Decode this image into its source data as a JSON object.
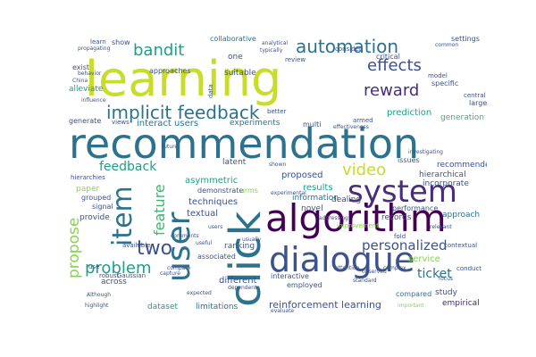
{
  "palette": {
    "yellow": "#c8dc2a",
    "green": "#3fb56e",
    "teal": "#1f9e89",
    "blue": "#2c728e",
    "indigo": "#3b528b",
    "purple": "#440154",
    "violet": "#472d7b",
    "lime": "#86d549"
  },
  "words": [
    {
      "text": "learning",
      "color": "yellow"
    },
    {
      "text": "recommendation",
      "color": "blue"
    },
    {
      "text": "system",
      "color": "violet"
    },
    {
      "text": "algorithm",
      "color": "purple"
    },
    {
      "text": "click",
      "color": "blue"
    },
    {
      "text": "dialogue",
      "color": "indigo"
    },
    {
      "text": "user",
      "color": "blue"
    },
    {
      "text": "item",
      "color": "blue"
    },
    {
      "text": "implicit feedback",
      "color": "blue"
    },
    {
      "text": "automation",
      "color": "blue"
    },
    {
      "text": "effects",
      "color": "indigo"
    },
    {
      "text": "bandit",
      "color": "teal"
    },
    {
      "text": "reward",
      "color": "violet"
    },
    {
      "text": "video",
      "color": "yellow"
    },
    {
      "text": "problem",
      "color": "teal"
    },
    {
      "text": "two",
      "color": "indigo"
    },
    {
      "text": "propose",
      "color": "lime"
    },
    {
      "text": "feature",
      "color": "green"
    },
    {
      "text": "personalized",
      "color": "indigo"
    },
    {
      "text": "feedback",
      "color": "teal"
    },
    {
      "text": "ticket",
      "color": "blue"
    },
    {
      "text": "reinforcement learning",
      "color": "indigo"
    },
    {
      "text": "interact users",
      "color": "blue"
    },
    {
      "text": "experiments",
      "color": "blue"
    },
    {
      "text": "asymmetric",
      "color": "teal"
    },
    {
      "text": "techniques",
      "color": "indigo"
    },
    {
      "text": "textual",
      "color": "indigo"
    },
    {
      "text": "proposed",
      "color": "indigo"
    },
    {
      "text": "information",
      "color": "blue"
    },
    {
      "text": "results",
      "color": "teal"
    },
    {
      "text": "novel",
      "color": "indigo"
    },
    {
      "text": "dealing",
      "color": "indigo"
    },
    {
      "text": "service",
      "color": "lime"
    },
    {
      "text": "approach",
      "color": "blue"
    },
    {
      "text": "study",
      "color": "indigo"
    },
    {
      "text": "empirical",
      "color": "violet"
    },
    {
      "text": "compared",
      "color": "blue"
    },
    {
      "text": "recommender",
      "color": "indigo"
    },
    {
      "text": "hierarchical",
      "color": "indigo"
    },
    {
      "text": "incorporate",
      "color": "indigo"
    },
    {
      "text": "records",
      "color": "indigo"
    },
    {
      "text": "performance",
      "color": "indigo"
    },
    {
      "text": "prediction",
      "color": "teal"
    },
    {
      "text": "generation",
      "color": "green"
    },
    {
      "text": "collaborative",
      "color": "blue"
    },
    {
      "text": "issues",
      "color": "indigo"
    },
    {
      "text": "different",
      "color": "indigo"
    },
    {
      "text": "employed",
      "color": "indigo"
    },
    {
      "text": "limitations",
      "color": "blue"
    },
    {
      "text": "dataset",
      "color": "teal"
    },
    {
      "text": "across",
      "color": "indigo"
    },
    {
      "text": "associated",
      "color": "indigo"
    },
    {
      "text": "interactive",
      "color": "indigo"
    },
    {
      "text": "ranking",
      "color": "indigo"
    },
    {
      "text": "latent",
      "color": "indigo"
    },
    {
      "text": "demonstrate",
      "color": "indigo"
    },
    {
      "text": "signal",
      "color": "indigo"
    },
    {
      "text": "paper",
      "color": "lime"
    },
    {
      "text": "grouped",
      "color": "indigo"
    },
    {
      "text": "provide",
      "color": "indigo"
    },
    {
      "text": "suitable",
      "color": "indigo"
    },
    {
      "text": "one",
      "color": "indigo"
    },
    {
      "text": "show",
      "color": "indigo"
    },
    {
      "text": "settings",
      "color": "indigo"
    },
    {
      "text": "consider",
      "color": "indigo"
    },
    {
      "text": "critical",
      "color": "indigo"
    },
    {
      "text": "specific",
      "color": "indigo"
    },
    {
      "text": "central",
      "color": "indigo"
    },
    {
      "text": "large",
      "color": "indigo"
    },
    {
      "text": "multi",
      "color": "indigo"
    },
    {
      "text": "generate",
      "color": "indigo"
    },
    {
      "text": "alleviate",
      "color": "teal"
    },
    {
      "text": "exist",
      "color": "indigo"
    },
    {
      "text": "approaches",
      "color": "indigo"
    },
    {
      "text": "arms",
      "color": "lime"
    },
    {
      "text": "armed",
      "color": "indigo"
    },
    {
      "text": "Gaussian",
      "color": "indigo"
    },
    {
      "text": "robust",
      "color": "indigo"
    },
    {
      "text": "available",
      "color": "indigo"
    },
    {
      "text": "improvement",
      "color": "lime"
    },
    {
      "text": "hierarchies",
      "color": "indigo"
    },
    {
      "text": "use",
      "color": "indigo"
    },
    {
      "text": "learn",
      "color": "indigo"
    },
    {
      "text": "views",
      "color": "indigo"
    },
    {
      "text": "review",
      "color": "indigo"
    },
    {
      "text": "model",
      "color": "indigo"
    },
    {
      "text": "contextual",
      "color": "indigo"
    },
    {
      "text": "conduct",
      "color": "indigo"
    },
    {
      "text": "better",
      "color": "indigo"
    },
    {
      "text": "future",
      "color": "indigo"
    },
    {
      "text": "comments",
      "color": "indigo"
    },
    {
      "text": "important",
      "color": "lime"
    },
    {
      "text": "Although",
      "color": "indigo"
    },
    {
      "text": "highlight",
      "color": "indigo"
    },
    {
      "text": "common",
      "color": "indigo"
    },
    {
      "text": "typically",
      "color": "indigo"
    },
    {
      "text": "analytical",
      "color": "indigo"
    },
    {
      "text": "China",
      "color": "indigo"
    },
    {
      "text": "influence",
      "color": "indigo"
    },
    {
      "text": "investigating",
      "color": "indigo"
    },
    {
      "text": "effectiveness",
      "color": "indigo"
    },
    {
      "text": "shown",
      "color": "indigo"
    },
    {
      "text": "experimental",
      "color": "indigo"
    },
    {
      "text": "usually",
      "color": "indigo"
    },
    {
      "text": "addressing",
      "color": "indigo"
    },
    {
      "text": "relevant",
      "color": "indigo"
    },
    {
      "text": "compare",
      "color": "indigo"
    },
    {
      "text": "expected",
      "color": "indigo"
    },
    {
      "text": "complex",
      "color": "indigo"
    },
    {
      "text": "users",
      "color": "indigo"
    },
    {
      "text": "standard",
      "color": "indigo"
    },
    {
      "text": "observed",
      "color": "indigo"
    },
    {
      "text": "evaluate",
      "color": "indigo"
    },
    {
      "text": "capture",
      "color": "indigo"
    },
    {
      "text": "behavior",
      "color": "indigo"
    },
    {
      "text": "dependent",
      "color": "indigo"
    },
    {
      "text": "useful",
      "color": "indigo"
    },
    {
      "text": "focus",
      "color": "indigo"
    },
    {
      "text": "attention",
      "color": "indigo"
    },
    {
      "text": "propagating",
      "color": "indigo"
    },
    {
      "text": "fold",
      "color": "indigo"
    },
    {
      "text": "data",
      "color": "indigo"
    }
  ]
}
